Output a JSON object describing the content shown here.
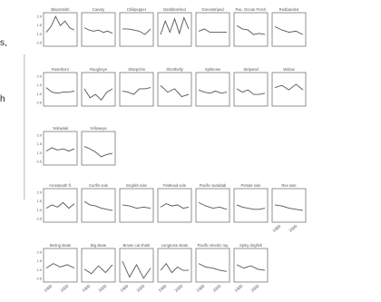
{
  "left_cut_text": [
    "s,",
    "h"
  ],
  "y_ticks": [
    "2.0",
    "1.5",
    "1.0",
    "0.5"
  ],
  "x_ticks": [
    "1980",
    "2000"
  ],
  "chart_data": [
    {
      "type": "line",
      "series": [
        {
          "name": "Blacksmith",
          "values": [
            1.0,
            1.5,
            2.4,
            1.6,
            2.0,
            1.4,
            1.2
          ]
        }
      ]
    },
    {
      "type": "line",
      "series": [
        {
          "name": "Canary",
          "values": [
            1.4,
            1.2,
            1.1,
            1.2,
            1.0,
            1.1,
            0.9
          ]
        }
      ]
    },
    {
      "type": "line",
      "series": [
        {
          "name": "Chilipepper",
          "values": [
            1.3,
            1.3,
            1.2,
            1.1,
            0.8,
            1.3
          ]
        }
      ]
    },
    {
      "type": "line",
      "series": [
        {
          "name": "Darkblotched",
          "values": [
            0.8,
            2.0,
            1.0,
            2.2,
            0.9,
            2.3,
            1.3
          ]
        }
      ]
    },
    {
      "type": "line",
      "series": [
        {
          "name": "Greenstriped",
          "values": [
            1.1,
            1.3,
            1.0,
            1.0,
            1.0,
            1.0
          ]
        }
      ]
    },
    {
      "type": "line",
      "series": [
        {
          "name": "Pac. Ocean Perch",
          "values": [
            1.6,
            1.3,
            1.2,
            0.8,
            0.9,
            0.8
          ]
        }
      ]
    },
    {
      "type": "line",
      "series": [
        {
          "name": "Redbanded",
          "values": [
            1.5,
            1.2,
            1.0,
            1.1,
            0.8
          ]
        }
      ]
    },
    {
      "type": "line",
      "series": [
        {
          "name": "Rosethorn",
          "values": [
            1.4,
            1.0,
            0.9,
            1.0,
            1.0,
            1.1
          ]
        }
      ]
    },
    {
      "type": "line",
      "series": [
        {
          "name": "Rougheye",
          "values": [
            1.3,
            0.5,
            0.8,
            0.3,
            1.0,
            1.3
          ]
        }
      ]
    },
    {
      "type": "line",
      "series": [
        {
          "name": "Sharpchin",
          "values": [
            1.1,
            1.0,
            0.8,
            1.3,
            1.3,
            1.4
          ]
        }
      ]
    },
    {
      "type": "line",
      "series": [
        {
          "name": "Shortbelly",
          "values": [
            1.6,
            1.0,
            1.3,
            0.6,
            0.8
          ]
        }
      ]
    },
    {
      "type": "line",
      "series": [
        {
          "name": "Splitnose",
          "values": [
            1.2,
            1.0,
            0.9,
            1.1,
            0.9,
            1.0
          ]
        }
      ]
    },
    {
      "type": "line",
      "series": [
        {
          "name": "Stripetail",
          "values": [
            1.3,
            1.0,
            1.2,
            0.8,
            0.8,
            0.9
          ]
        }
      ]
    },
    {
      "type": "line",
      "series": [
        {
          "name": "Widow",
          "values": [
            1.4,
            1.6,
            1.2,
            1.7,
            1.2
          ]
        }
      ]
    },
    {
      "type": "line",
      "series": [
        {
          "name": "Yellowtail",
          "values": [
            1.0,
            1.3,
            1.1,
            1.2,
            1.0,
            1.2
          ]
        }
      ]
    },
    {
      "type": "line",
      "series": [
        {
          "name": "Yelloweye",
          "values": [
            1.4,
            1.2,
            0.9,
            0.5,
            0.7,
            0.8
          ]
        }
      ]
    },
    {
      "type": "line",
      "series": [
        {
          "name": "Arrowtooth fl.",
          "values": [
            1.0,
            1.3,
            1.1,
            1.5,
            1.0,
            1.4
          ]
        }
      ]
    },
    {
      "type": "line",
      "series": [
        {
          "name": "Curlfin sole",
          "values": [
            1.6,
            1.3,
            1.2,
            1.0,
            0.9,
            0.8
          ]
        }
      ]
    },
    {
      "type": "line",
      "series": [
        {
          "name": "English sole",
          "values": [
            1.3,
            1.2,
            1.0,
            1.1,
            1.0
          ]
        }
      ]
    },
    {
      "type": "line",
      "series": [
        {
          "name": "Flathead sole",
          "values": [
            1.1,
            1.4,
            1.2,
            1.3,
            1.0,
            1.1
          ]
        }
      ]
    },
    {
      "type": "line",
      "series": [
        {
          "name": "Pacific sanddab",
          "values": [
            1.5,
            1.2,
            1.0,
            1.1,
            0.9
          ]
        }
      ]
    },
    {
      "type": "line",
      "series": [
        {
          "name": "Petrale sole",
          "values": [
            1.3,
            1.1,
            1.0,
            0.9,
            0.9,
            1.0
          ]
        }
      ]
    },
    {
      "type": "line",
      "series": [
        {
          "name": "Rex sole",
          "values": [
            1.3,
            1.2,
            1.0,
            0.9,
            0.8
          ]
        }
      ]
    },
    {
      "type": "line",
      "series": [
        {
          "name": "Bering skate",
          "values": [
            1.0,
            1.4,
            1.1,
            1.3,
            1.0
          ]
        }
      ]
    },
    {
      "type": "line",
      "series": [
        {
          "name": "Big skate",
          "values": [
            0.9,
            0.5,
            1.2,
            0.6,
            1.3
          ]
        }
      ]
    },
    {
      "type": "line",
      "series": [
        {
          "name": "Brown cat shark",
          "values": [
            1.6,
            0.2,
            1.3,
            0.1,
            1.0
          ]
        }
      ]
    },
    {
      "type": "line",
      "series": [
        {
          "name": "Longnose skate",
          "values": [
            0.8,
            1.4,
            0.6,
            1.1,
            0.8,
            0.8
          ]
        }
      ]
    },
    {
      "type": "line",
      "series": [
        {
          "name": "Pacific electric ray",
          "values": [
            1.4,
            1.1,
            1.0,
            0.8,
            0.7
          ]
        }
      ]
    },
    {
      "type": "line",
      "series": [
        {
          "name": "Spiny dogfish",
          "values": [
            1.3,
            1.0,
            1.2,
            0.9,
            0.8
          ]
        }
      ]
    }
  ]
}
